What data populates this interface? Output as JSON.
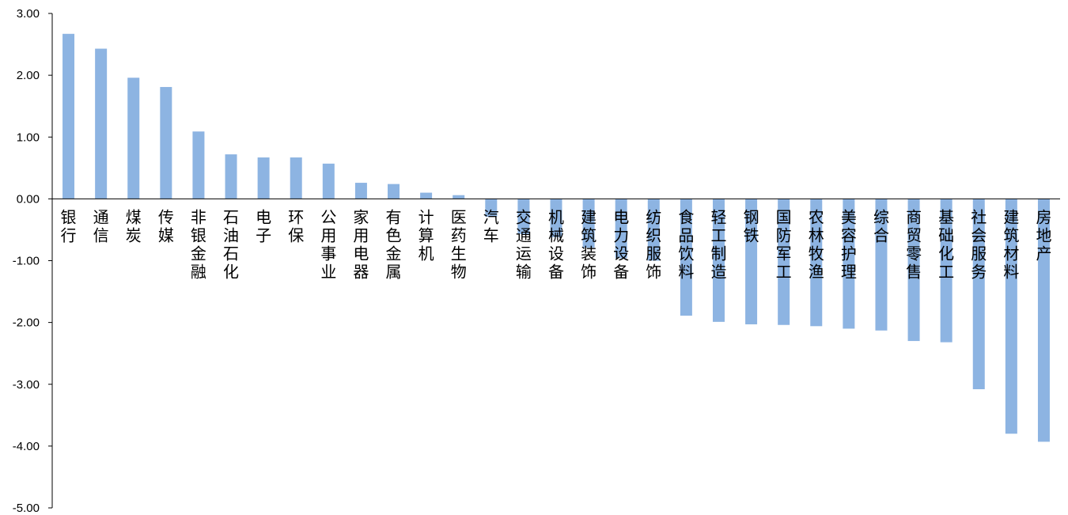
{
  "chart_data": {
    "type": "bar",
    "categories": [
      "银行",
      "通信",
      "煤炭",
      "传媒",
      "非银金融",
      "石油石化",
      "电子",
      "环保",
      "公用事业",
      "家用电器",
      "有色金属",
      "计算机",
      "医药生物",
      "汽车",
      "交通运输",
      "机械设备",
      "建筑装饰",
      "电力设备",
      "纺织服饰",
      "食品饮料",
      "轻工制造",
      "钢铁",
      "国防军工",
      "农林牧渔",
      "美容护理",
      "综合",
      "商贸零售",
      "基础化工",
      "社会服务",
      "建筑材料",
      "房地产"
    ],
    "values": [
      2.67,
      2.43,
      1.96,
      1.81,
      1.09,
      0.72,
      0.67,
      0.67,
      0.57,
      0.26,
      0.24,
      0.1,
      0.06,
      -0.29,
      -0.57,
      -0.62,
      -0.79,
      -0.96,
      -1.0,
      -1.89,
      -1.99,
      -2.03,
      -2.04,
      -2.06,
      -2.1,
      -2.13,
      -2.3,
      -2.32,
      -3.08,
      -3.8,
      -3.93
    ],
    "ylim": [
      -5,
      3
    ],
    "yticks": [
      "3.00",
      "2.00",
      "1.00",
      "0.00",
      "-1.00",
      "-2.00",
      "-3.00",
      "-4.00",
      "-5.00"
    ],
    "grid": false,
    "legend": "none",
    "colors": {
      "bar": "#8DB4E2",
      "axis": "#000000"
    }
  }
}
